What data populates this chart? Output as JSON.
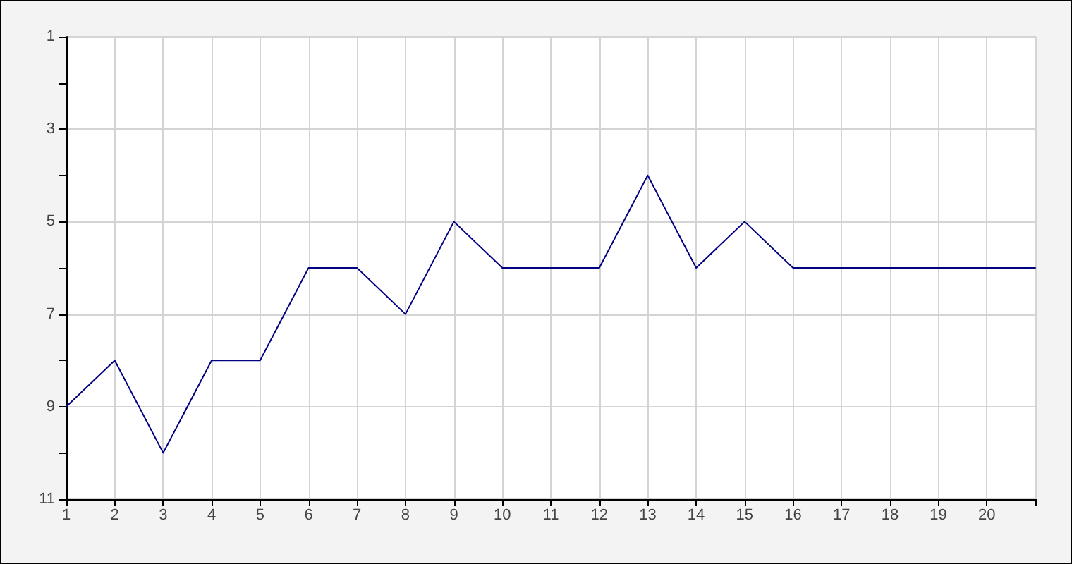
{
  "chart_data": {
    "type": "line",
    "x": [
      1,
      2,
      3,
      4,
      5,
      6,
      7,
      8,
      9,
      10,
      11,
      12,
      13,
      14,
      15,
      16,
      17,
      18,
      19,
      20,
      21
    ],
    "series": [
      {
        "color": "#000080",
        "values": [
          9,
          8,
          10,
          8,
          8,
          6,
          6,
          7,
          5,
          6,
          6,
          6,
          4,
          6,
          5,
          6,
          6,
          6,
          6,
          6,
          6
        ]
      }
    ],
    "xlim": [
      1,
      21
    ],
    "xticks": [
      1,
      2,
      3,
      4,
      5,
      6,
      7,
      8,
      9,
      10,
      11,
      12,
      13,
      14,
      15,
      16,
      17,
      18,
      19,
      20,
      {
        "value": 21,
        "label": null
      }
    ],
    "ylim": [
      11,
      1
    ],
    "yticks": [
      1,
      {
        "value": 2,
        "label": null
      },
      3,
      {
        "value": 4,
        "label": null
      },
      5,
      {
        "value": 6,
        "label": null
      },
      7,
      {
        "value": 8,
        "label": null
      },
      9,
      {
        "value": 10,
        "label": null
      },
      11
    ],
    "grid": true,
    "marker": "none",
    "line_style": "solid"
  }
}
